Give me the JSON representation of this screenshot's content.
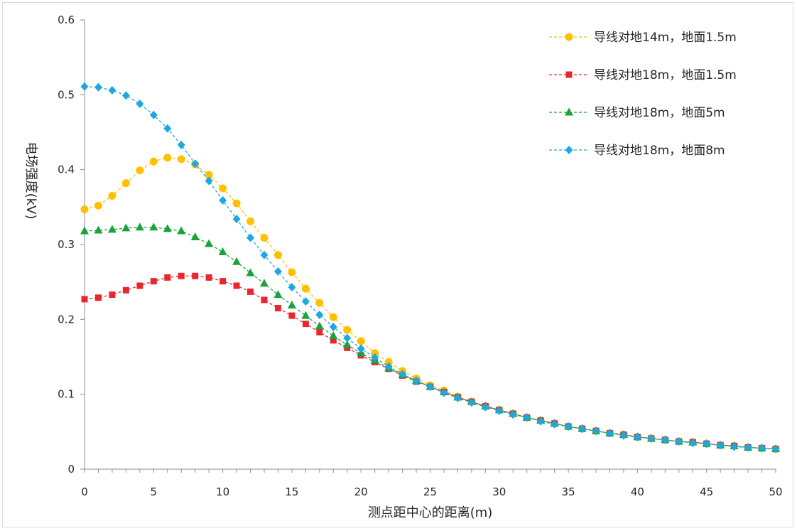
{
  "chart_data": {
    "type": "line",
    "title": "",
    "xlabel": "测点距中心的距离(m)",
    "ylabel": "电场强度(kV)",
    "xlim": [
      0,
      50
    ],
    "ylim": [
      0,
      0.6
    ],
    "xticks": [
      "0",
      "5",
      "10",
      "15",
      "20",
      "25",
      "30",
      "35",
      "40",
      "45",
      "50"
    ],
    "yticks": [
      "0",
      "0.1",
      "0.2",
      "0.3",
      "0.4",
      "0.5",
      "0.6"
    ],
    "grid": false,
    "legend_position": "top-right",
    "x": [
      0,
      1,
      2,
      3,
      4,
      5,
      6,
      7,
      8,
      9,
      10,
      11,
      12,
      13,
      14,
      15,
      16,
      17,
      18,
      19,
      20,
      21,
      22,
      23,
      24,
      25,
      26,
      27,
      28,
      29,
      30,
      31,
      32,
      33,
      34,
      35,
      36,
      37,
      38,
      39,
      40,
      41,
      42,
      43,
      44,
      45,
      46,
      47,
      48,
      49,
      50
    ],
    "series": [
      {
        "name": "导线对地14m，地面1.5m",
        "color": "#FFC000",
        "marker": "circle",
        "values": [
          0.347,
          0.352,
          0.365,
          0.382,
          0.399,
          0.411,
          0.416,
          0.414,
          0.407,
          0.393,
          0.375,
          0.355,
          0.331,
          0.309,
          0.286,
          0.263,
          0.241,
          0.222,
          0.203,
          0.186,
          0.171,
          0.155,
          0.143,
          0.131,
          0.121,
          0.112,
          0.105,
          0.097,
          0.09,
          0.084,
          0.079,
          0.074,
          0.069,
          0.065,
          0.061,
          0.057,
          0.054,
          0.051,
          0.048,
          0.046,
          0.043,
          0.041,
          0.039,
          0.037,
          0.036,
          0.034,
          0.032,
          0.031,
          0.029,
          0.028,
          0.027
        ]
      },
      {
        "name": "导线对地18m，地面1.5m",
        "color": "#E8262C",
        "marker": "square",
        "values": [
          0.227,
          0.229,
          0.233,
          0.239,
          0.245,
          0.251,
          0.256,
          0.258,
          0.258,
          0.256,
          0.251,
          0.245,
          0.237,
          0.226,
          0.215,
          0.205,
          0.194,
          0.183,
          0.172,
          0.162,
          0.152,
          0.143,
          0.134,
          0.125,
          0.117,
          0.11,
          0.103,
          0.096,
          0.09,
          0.084,
          0.079,
          0.074,
          0.069,
          0.065,
          0.061,
          0.057,
          0.054,
          0.051,
          0.048,
          0.046,
          0.043,
          0.041,
          0.039,
          0.037,
          0.036,
          0.034,
          0.032,
          0.031,
          0.029,
          0.028,
          0.027
        ]
      },
      {
        "name": "导线对地18m，地面5m",
        "color": "#1BA33B",
        "marker": "triangle",
        "values": [
          0.318,
          0.319,
          0.32,
          0.322,
          0.323,
          0.323,
          0.321,
          0.318,
          0.31,
          0.301,
          0.29,
          0.277,
          0.262,
          0.248,
          0.233,
          0.219,
          0.205,
          0.191,
          0.178,
          0.166,
          0.155,
          0.145,
          0.135,
          0.126,
          0.118,
          0.11,
          0.103,
          0.096,
          0.09,
          0.084,
          0.079,
          0.074,
          0.069,
          0.065,
          0.061,
          0.057,
          0.054,
          0.051,
          0.048,
          0.046,
          0.043,
          0.041,
          0.039,
          0.037,
          0.036,
          0.034,
          0.032,
          0.031,
          0.029,
          0.028,
          0.027
        ]
      },
      {
        "name": "导线对地18m，地面8m",
        "color": "#1EA7E1",
        "marker": "diamond",
        "values": [
          0.511,
          0.51,
          0.506,
          0.499,
          0.488,
          0.473,
          0.455,
          0.433,
          0.408,
          0.385,
          0.359,
          0.334,
          0.309,
          0.286,
          0.264,
          0.243,
          0.224,
          0.206,
          0.19,
          0.175,
          0.161,
          0.149,
          0.137,
          0.127,
          0.118,
          0.11,
          0.102,
          0.095,
          0.089,
          0.083,
          0.078,
          0.073,
          0.069,
          0.064,
          0.06,
          0.057,
          0.054,
          0.051,
          0.048,
          0.045,
          0.043,
          0.041,
          0.039,
          0.037,
          0.035,
          0.034,
          0.032,
          0.03,
          0.029,
          0.028,
          0.027
        ]
      }
    ]
  }
}
